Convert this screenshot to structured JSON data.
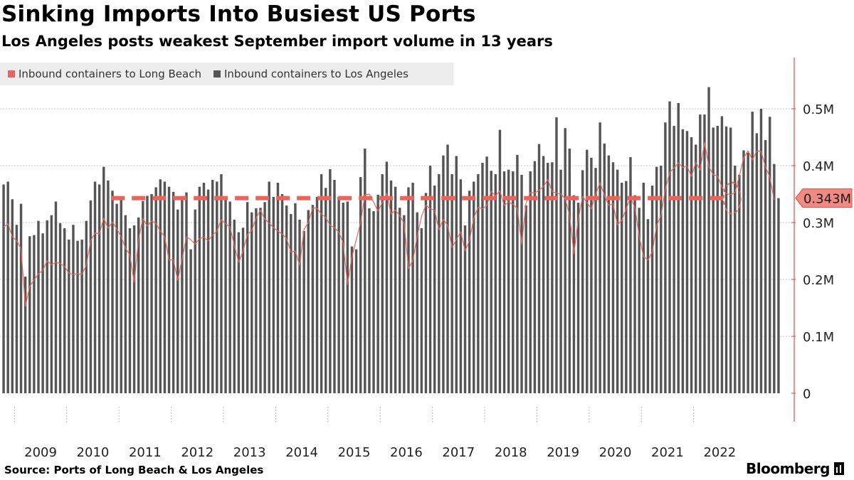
{
  "title": "Sinking Imports Into Busiest US Ports",
  "subtitle": "Los Angeles posts weakest September import volume in 13 years",
  "legend": [
    {
      "label": "Inbound containers to Long Beach",
      "color": "#e8655e"
    },
    {
      "label": "Inbound containers to Los Angeles",
      "color": "#555555"
    }
  ],
  "source": "Source: Ports of Long Beach & Los Angeles",
  "brand": "Bloomberg",
  "chart_data": {
    "type": "bar",
    "y_unit": "containers",
    "ylim": [
      -50000,
      590000
    ],
    "y_ticks": [
      {
        "value": 0,
        "label": "0"
      },
      {
        "value": 100000,
        "label": "0.1M"
      },
      {
        "value": 200000,
        "label": "0.2M"
      },
      {
        "value": 300000,
        "label": "0.3M"
      },
      {
        "value": 400000,
        "label": "0.4M"
      },
      {
        "value": 500000,
        "label": "0.5M"
      }
    ],
    "x_start": "2008-10",
    "x_ticks": [
      "2009",
      "2010",
      "2011",
      "2012",
      "2013",
      "2014",
      "2015",
      "2016",
      "2017",
      "2018",
      "2019",
      "2020",
      "2021",
      "2022"
    ],
    "reference_line": {
      "value": 343000,
      "label": "0.343M",
      "color": "#e8655e"
    },
    "highlight_point": "2022-09",
    "series": [
      {
        "name": "Inbound containers to Los Angeles",
        "type": "bar",
        "color": "#555555",
        "values": [
          367000,
          372000,
          341000,
          296000,
          333000,
          205000,
          276000,
          278000,
          303000,
          281000,
          304000,
          313000,
          337000,
          299000,
          290000,
          270000,
          296000,
          268000,
          270000,
          303000,
          339000,
          372000,
          367000,
          398000,
          374000,
          356000,
          333000,
          342000,
          313000,
          290000,
          295000,
          309000,
          338000,
          347000,
          350000,
          362000,
          376000,
          372000,
          363000,
          354000,
          323000,
          343000,
          353000,
          253000,
          323000,
          363000,
          370000,
          358000,
          375000,
          372000,
          385000,
          340000,
          337000,
          305000,
          283000,
          291000,
          336000,
          318000,
          325000,
          326000,
          336000,
          372000,
          345000,
          370000,
          350000,
          330000,
          315000,
          334000,
          305000,
          285000,
          322000,
          331000,
          345000,
          385000,
          361000,
          394000,
          375000,
          345000,
          335000,
          337000,
          258000,
          253000,
          380000,
          430000,
          325000,
          320000,
          349000,
          385000,
          407000,
          374000,
          363000,
          326000,
          313000,
          362000,
          370000,
          318000,
          290000,
          352000,
          400000,
          365000,
          385000,
          418000,
          437000,
          385000,
          417000,
          376000,
          295000,
          356000,
          372000,
          385000,
          405000,
          416000,
          391000,
          385000,
          463000,
          390000,
          393000,
          390000,
          419000,
          384000,
          330000,
          390000,
          408000,
          438000,
          417000,
          405000,
          406000,
          485000,
          393000,
          466000,
          430000,
          348000,
          335000,
          392000,
          428000,
          414000,
          396000,
          476000,
          439000,
          418000,
          406000,
          393000,
          370000,
          373000,
          415000,
          348000,
          326000,
          370000,
          306000,
          365000,
          398000,
          400000,
          476000,
          513000,
          470000,
          510000,
          464000,
          461000,
          450000,
          437000,
          490000,
          490000,
          538000,
          467000,
          470000,
          487000,
          469000,
          467000,
          400000,
          384000,
          427000,
          423000,
          495000,
          457000,
          500000,
          445000,
          486000,
          403000,
          343000
        ]
      },
      {
        "name": "Inbound containers to Long Beach",
        "type": "line",
        "color": "#e8655e",
        "values": [
          292000,
          298000,
          275000,
          268000,
          254000,
          153000,
          188000,
          199000,
          210000,
          216000,
          233000,
          226000,
          230000,
          228000,
          223000,
          211000,
          209000,
          210000,
          209000,
          225000,
          268000,
          282000,
          280000,
          308000,
          290000,
          301000,
          289000,
          275000,
          255000,
          243000,
          195000,
          271000,
          307000,
          294000,
          303000,
          299000,
          285000,
          275000,
          234000,
          235000,
          198000,
          236000,
          275000,
          270000,
          262000,
          272000,
          274000,
          268000,
          278000,
          285000,
          305000,
          298000,
          292000,
          260000,
          230000,
          250000,
          279000,
          286000,
          308000,
          322000,
          306000,
          299000,
          291000,
          285000,
          280000,
          272000,
          248000,
          250000,
          225000,
          288000,
          300000,
          326000,
          325000,
          315000,
          309000,
          295000,
          291000,
          283000,
          264000,
          191000,
          239000,
          270000,
          300000,
          349000,
          350000,
          336000,
          320000,
          335000,
          351000,
          315000,
          322000,
          312000,
          299000,
          219000,
          233000,
          276000,
          311000,
          331000,
          324000,
          322000,
          287000,
          306000,
          295000,
          256000,
          270000,
          284000,
          250000,
          268000,
          308000,
          327000,
          324000,
          330000,
          355000,
          347000,
          356000,
          330000,
          336000,
          332000,
          325000,
          262000,
          334000,
          353000,
          352000,
          357000,
          363000,
          376000,
          354000,
          352000,
          350000,
          342000,
          313000,
          245000,
          306000,
          346000,
          335000,
          324000,
          350000,
          370000,
          348000,
          330000,
          333000,
          296000,
          304000,
          324000,
          344000,
          327000,
          276000,
          240000,
          234000,
          248000,
          295000,
          312000,
          359000,
          388000,
          396000,
          405000,
          397000,
          399000,
          381000,
          406000,
          392000,
          441000,
          398000,
          384000,
          382000,
          362000,
          351000,
          349000,
          353000,
          382000,
          414000,
          426000,
          410000,
          426000,
          425000,
          398000,
          380000,
          340000
        ]
      }
    ]
  }
}
